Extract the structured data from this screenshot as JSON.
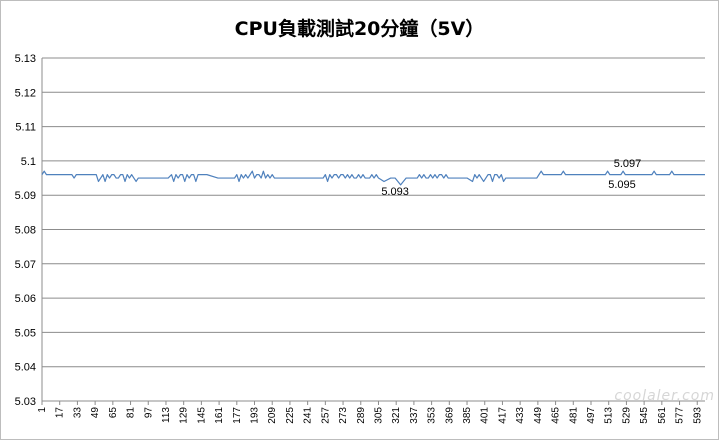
{
  "chart_data": {
    "type": "line",
    "title": "CPU負載測試20分鐘（5V）",
    "xlabel": "",
    "ylabel": "",
    "ylim": [
      5.03,
      5.13
    ],
    "yticks": [
      "5.03",
      "5.04",
      "5.05",
      "5.06",
      "5.07",
      "5.08",
      "5.09",
      "5.1",
      "5.11",
      "5.12",
      "5.13"
    ],
    "xrange": [
      1,
      600
    ],
    "xticks": [
      "1",
      "17",
      "33",
      "49",
      "65",
      "81",
      "97",
      "113",
      "129",
      "145",
      "161",
      "177",
      "193",
      "209",
      "225",
      "241",
      "257",
      "273",
      "289",
      "305",
      "321",
      "337",
      "353",
      "369",
      "385",
      "401",
      "417",
      "433",
      "449",
      "465",
      "481",
      "497",
      "513",
      "529",
      "545",
      "561",
      "577",
      "593"
    ],
    "grid": "horizontal",
    "legend": "none",
    "series_color": "#4f81bd",
    "series": [
      {
        "x": [
          1,
          3,
          5,
          7,
          9,
          10,
          12,
          14,
          16,
          18,
          20,
          22,
          24,
          26,
          28,
          30,
          32,
          34,
          36,
          38,
          40,
          42,
          44,
          46,
          48,
          50,
          52,
          54,
          56,
          58,
          60,
          62,
          64,
          66,
          68,
          70,
          72,
          74,
          76,
          78,
          80,
          82,
          84,
          86,
          88,
          90,
          100,
          110,
          115,
          118,
          120,
          122,
          124,
          126,
          128,
          130,
          132,
          134,
          136,
          138,
          140,
          142,
          144,
          150,
          160,
          170,
          175,
          177,
          179,
          181,
          183,
          185,
          187,
          189,
          191,
          193,
          195,
          197,
          199,
          201,
          203,
          205,
          207,
          209,
          211,
          213,
          215,
          220,
          230,
          240,
          250,
          255,
          257,
          259,
          261,
          263,
          265,
          267,
          269,
          271,
          273,
          275,
          277,
          279,
          281,
          283,
          285,
          287,
          289,
          291,
          293,
          295,
          297,
          299,
          301,
          303,
          305,
          310,
          316,
          320,
          325,
          330,
          335,
          340,
          342,
          344,
          346,
          348,
          350,
          352,
          354,
          356,
          358,
          360,
          362,
          364,
          366,
          368,
          370,
          375,
          380,
          385,
          390,
          392,
          394,
          396,
          398,
          400,
          402,
          404,
          406,
          408,
          410,
          412,
          414,
          416,
          418,
          420,
          425,
          430,
          440,
          448,
          450,
          452,
          454,
          456,
          458,
          460,
          462,
          464,
          466,
          468,
          470,
          472,
          474,
          476,
          478,
          480,
          482,
          484,
          486,
          488,
          490,
          492,
          494,
          496,
          498,
          500,
          502,
          504,
          506,
          508,
          510,
          512,
          514,
          516,
          518,
          520,
          522,
          524,
          526,
          528,
          530,
          532,
          534,
          536,
          538,
          540,
          542,
          544,
          546,
          548,
          550,
          552,
          554,
          556,
          558,
          560,
          562,
          564,
          566,
          568,
          570,
          572,
          574,
          576,
          578,
          580,
          585,
          590,
          595,
          600
        ],
        "values": [
          5.096,
          5.097,
          5.096,
          5.096,
          5.096,
          5.096,
          5.096,
          5.096,
          5.096,
          5.096,
          5.096,
          5.096,
          5.096,
          5.096,
          5.096,
          5.095,
          5.096,
          5.096,
          5.096,
          5.096,
          5.096,
          5.096,
          5.096,
          5.096,
          5.096,
          5.096,
          5.094,
          5.095,
          5.096,
          5.094,
          5.096,
          5.095,
          5.096,
          5.096,
          5.095,
          5.095,
          5.096,
          5.096,
          5.094,
          5.096,
          5.095,
          5.096,
          5.095,
          5.094,
          5.095,
          5.095,
          5.095,
          5.095,
          5.095,
          5.096,
          5.094,
          5.096,
          5.095,
          5.096,
          5.096,
          5.094,
          5.096,
          5.095,
          5.096,
          5.096,
          5.094,
          5.096,
          5.096,
          5.096,
          5.095,
          5.095,
          5.095,
          5.096,
          5.094,
          5.096,
          5.095,
          5.096,
          5.095,
          5.096,
          5.097,
          5.095,
          5.096,
          5.096,
          5.095,
          5.097,
          5.095,
          5.096,
          5.095,
          5.096,
          5.095,
          5.095,
          5.095,
          5.095,
          5.095,
          5.095,
          5.095,
          5.095,
          5.096,
          5.094,
          5.096,
          5.095,
          5.096,
          5.096,
          5.095,
          5.096,
          5.096,
          5.095,
          5.096,
          5.095,
          5.096,
          5.095,
          5.095,
          5.096,
          5.095,
          5.096,
          5.095,
          5.095,
          5.095,
          5.096,
          5.095,
          5.096,
          5.095,
          5.094,
          5.095,
          5.095,
          5.093,
          5.095,
          5.095,
          5.095,
          5.096,
          5.095,
          5.096,
          5.095,
          5.095,
          5.096,
          5.095,
          5.096,
          5.095,
          5.096,
          5.096,
          5.095,
          5.096,
          5.095,
          5.095,
          5.095,
          5.095,
          5.095,
          5.094,
          5.096,
          5.095,
          5.096,
          5.095,
          5.094,
          5.095,
          5.096,
          5.096,
          5.094,
          5.096,
          5.096,
          5.095,
          5.096,
          5.094,
          5.095,
          5.095,
          5.095,
          5.095,
          5.095,
          5.096,
          5.097,
          5.096,
          5.096,
          5.096,
          5.096,
          5.096,
          5.096,
          5.096,
          5.096,
          5.096,
          5.097,
          5.096,
          5.096,
          5.096,
          5.096,
          5.096,
          5.096,
          5.096,
          5.096,
          5.096,
          5.096,
          5.096,
          5.096,
          5.096,
          5.096,
          5.096,
          5.096,
          5.096,
          5.096,
          5.096,
          5.097,
          5.096,
          5.096,
          5.096,
          5.096,
          5.096,
          5.096,
          5.097,
          5.096,
          5.096,
          5.096,
          5.096,
          5.096,
          5.096,
          5.096,
          5.096,
          5.096,
          5.096,
          5.096,
          5.096,
          5.096,
          5.097,
          5.096,
          5.096,
          5.096,
          5.096,
          5.096,
          5.096,
          5.096,
          5.097,
          5.096,
          5.096,
          5.096,
          5.096,
          5.096,
          5.096,
          5.096,
          5.096,
          5.096
        ]
      }
    ],
    "annotations": [
      {
        "text": "5.093",
        "x": 320,
        "y": 5.093
      },
      {
        "text": "5.097",
        "x": 530,
        "y": 5.097
      },
      {
        "text": "5.095",
        "x": 525,
        "y": 5.095
      }
    ]
  },
  "watermark": "coolaler.com"
}
